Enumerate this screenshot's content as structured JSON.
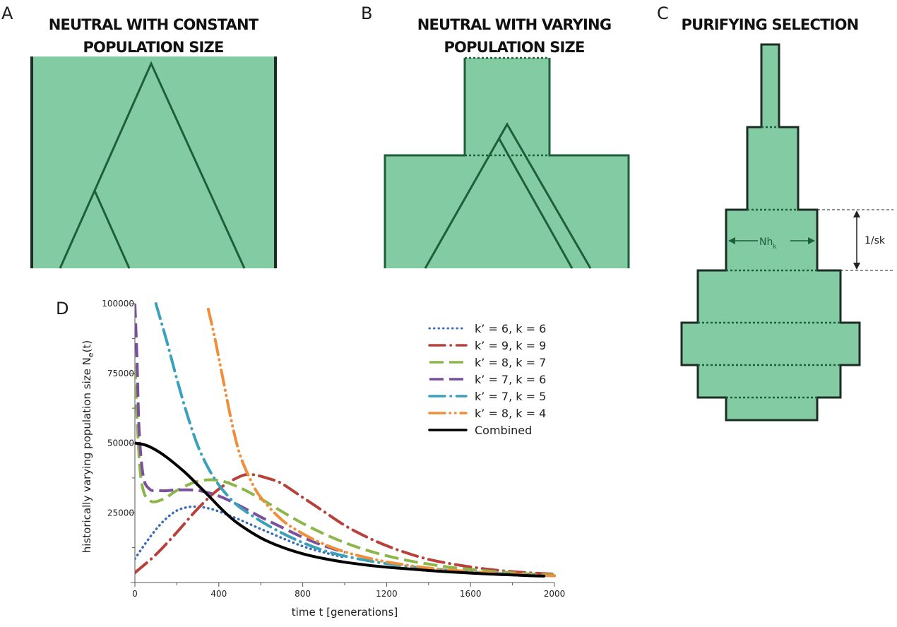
{
  "panels": {
    "a": {
      "letter": "A",
      "title_line1": "NEUTRAL WITH CONSTANT",
      "title_line2": "POPULATION SIZE"
    },
    "b": {
      "letter": "B",
      "title_line1": "NEUTRAL WITH VARYING",
      "title_line2": "POPULATION SIZE"
    },
    "c": {
      "letter": "C",
      "title_line1": "PURIFYING SELECTION",
      "width_label_main": "Nh",
      "width_label_sub": "k",
      "height_label": "1/sk"
    },
    "d": {
      "letter": "D"
    }
  },
  "colors": {
    "fill": "#82cba3",
    "outline": "#1f5e3a",
    "series": [
      "#3a6db5",
      "#b8413b",
      "#8db64a",
      "#7a4f9b",
      "#3aa1bd",
      "#ef8f3a",
      "#000000"
    ]
  },
  "chart_data": {
    "type": "line",
    "xlabel": "time t [generations]",
    "ylabel_main": "historically varying population size N",
    "ylabel_sub": "e",
    "ylabel_tail": "(t)",
    "xlim": [
      0,
      2000
    ],
    "ylim": [
      0,
      100000
    ],
    "x_ticks": [
      "0",
      "400",
      "800",
      "1200",
      "1600",
      "2000"
    ],
    "y_ticks": [
      "0",
      "25000",
      "50000",
      "75000",
      "100000"
    ],
    "legend_position": "top-right",
    "series": [
      {
        "name": "k’ = 6, k = 6",
        "style": "dotted",
        "points": [
          [
            0,
            8500
          ],
          [
            50,
            14000
          ],
          [
            100,
            19000
          ],
          [
            150,
            23000
          ],
          [
            200,
            25800
          ],
          [
            250,
            27000
          ],
          [
            300,
            27200
          ],
          [
            350,
            26600
          ],
          [
            400,
            25500
          ],
          [
            500,
            22500
          ],
          [
            600,
            19200
          ],
          [
            700,
            16000
          ],
          [
            800,
            13000
          ],
          [
            900,
            10800
          ],
          [
            1000,
            9000
          ]
        ]
      },
      {
        "name": "k’ = 9, k = 9",
        "style": "dash-dot",
        "points": [
          [
            0,
            3500
          ],
          [
            100,
            10000
          ],
          [
            200,
            18000
          ],
          [
            300,
            26500
          ],
          [
            400,
            33500
          ],
          [
            500,
            38000
          ],
          [
            560,
            38700
          ],
          [
            650,
            37000
          ],
          [
            700,
            35500
          ],
          [
            800,
            30500
          ],
          [
            900,
            25500
          ],
          [
            1000,
            20500
          ],
          [
            1100,
            16500
          ],
          [
            1200,
            13200
          ],
          [
            1300,
            10500
          ],
          [
            1400,
            8300
          ],
          [
            1500,
            6800
          ],
          [
            1600,
            5600
          ],
          [
            1700,
            4600
          ],
          [
            1800,
            3900
          ],
          [
            1900,
            3400
          ],
          [
            2000,
            3000
          ]
        ]
      },
      {
        "name": "k’ = 8, k = 7",
        "style": "long-dash",
        "points": [
          [
            0,
            78000
          ],
          [
            20,
            45000
          ],
          [
            40,
            33000
          ],
          [
            70,
            29500
          ],
          [
            100,
            29000
          ],
          [
            150,
            30500
          ],
          [
            200,
            33000
          ],
          [
            300,
            36300
          ],
          [
            400,
            36600
          ],
          [
            500,
            34000
          ],
          [
            600,
            30000
          ],
          [
            700,
            25500
          ],
          [
            800,
            21200
          ],
          [
            900,
            17500
          ],
          [
            1000,
            14300
          ],
          [
            1100,
            11700
          ],
          [
            1200,
            9600
          ],
          [
            1300,
            7900
          ],
          [
            1400,
            6600
          ],
          [
            1500,
            5500
          ],
          [
            1600,
            4700
          ],
          [
            1700,
            4000
          ],
          [
            1800,
            3500
          ],
          [
            1900,
            3000
          ],
          [
            2000,
            2700
          ]
        ]
      },
      {
        "name": "k’ = 7, k = 6",
        "style": "long-dash",
        "points": [
          [
            0,
            100000
          ],
          [
            10,
            80000
          ],
          [
            20,
            55000
          ],
          [
            40,
            38000
          ],
          [
            70,
            33500
          ],
          [
            100,
            33000
          ],
          [
            150,
            32900
          ],
          [
            200,
            33200
          ],
          [
            300,
            33000
          ],
          [
            400,
            31000
          ],
          [
            500,
            27500
          ],
          [
            600,
            23500
          ],
          [
            700,
            19800
          ],
          [
            800,
            16200
          ],
          [
            900,
            13200
          ],
          [
            1000,
            10800
          ]
        ]
      },
      {
        "name": "k’ = 7, k = 5",
        "style": "dash-dot",
        "points": [
          [
            100,
            100000
          ],
          [
            150,
            87000
          ],
          [
            200,
            73000
          ],
          [
            250,
            60000
          ],
          [
            300,
            49000
          ],
          [
            350,
            41000
          ],
          [
            400,
            35000
          ],
          [
            450,
            30500
          ],
          [
            500,
            27000
          ],
          [
            600,
            22000
          ],
          [
            700,
            17800
          ],
          [
            800,
            14300
          ],
          [
            900,
            11500
          ],
          [
            1000,
            9500
          ],
          [
            1100,
            8000
          ],
          [
            1200,
            6800
          ],
          [
            1400,
            5000
          ],
          [
            1600,
            3800
          ],
          [
            1800,
            3000
          ],
          [
            2000,
            2400
          ]
        ]
      },
      {
        "name": "k’ = 8, k = 4",
        "style": "dash-dot-dot",
        "points": [
          [
            350,
            98000
          ],
          [
            380,
            88000
          ],
          [
            420,
            73000
          ],
          [
            460,
            58000
          ],
          [
            500,
            46000
          ],
          [
            550,
            37000
          ],
          [
            600,
            30500
          ],
          [
            700,
            22500
          ],
          [
            800,
            17500
          ],
          [
            900,
            13800
          ],
          [
            1000,
            11000
          ],
          [
            1100,
            9000
          ],
          [
            1200,
            7400
          ],
          [
            1300,
            6200
          ],
          [
            1400,
            5200
          ],
          [
            1600,
            3900
          ],
          [
            1800,
            3000
          ],
          [
            2000,
            2400
          ]
        ]
      },
      {
        "name": "Combined",
        "style": "solid",
        "points": [
          [
            0,
            50000
          ],
          [
            50,
            49300
          ],
          [
            100,
            47500
          ],
          [
            150,
            45000
          ],
          [
            200,
            42000
          ],
          [
            250,
            38700
          ],
          [
            300,
            35000
          ],
          [
            350,
            31200
          ],
          [
            400,
            27300
          ],
          [
            450,
            23700
          ],
          [
            500,
            20700
          ],
          [
            600,
            16000
          ],
          [
            700,
            12700
          ],
          [
            800,
            10300
          ],
          [
            900,
            8600
          ],
          [
            1000,
            7300
          ],
          [
            1100,
            6300
          ],
          [
            1200,
            5500
          ],
          [
            1300,
            4900
          ],
          [
            1400,
            4300
          ],
          [
            1500,
            3800
          ],
          [
            1600,
            3400
          ],
          [
            1700,
            3000
          ],
          [
            1800,
            2700
          ],
          [
            1900,
            2400
          ],
          [
            1950,
            2300
          ]
        ]
      }
    ]
  }
}
